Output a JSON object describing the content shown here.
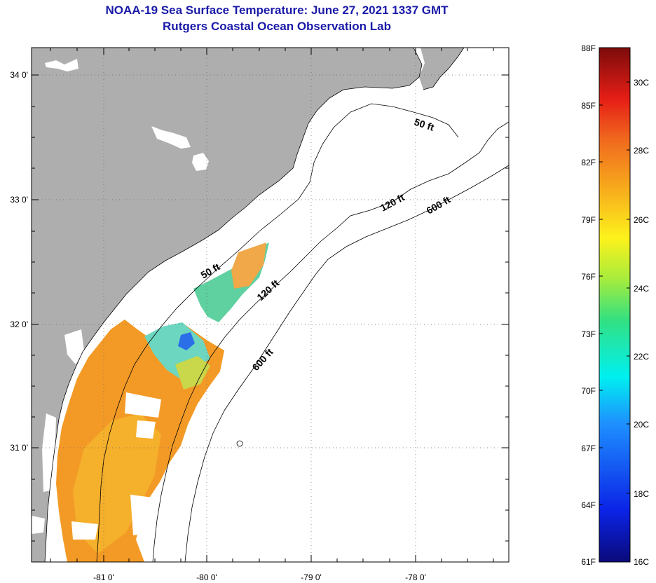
{
  "header": {
    "title": "NOAA-19 Sea Surface Temperature:  June 27, 2021 1337 GMT",
    "subtitle": "Rutgers Coastal Ocean Observation Lab"
  },
  "axes": {
    "longitude_labels": [
      "-81 0'",
      "-80 0'",
      "-79 0'",
      "-78 0'"
    ],
    "latitude_labels": [
      "34 0'",
      "33 0'",
      "32 0'",
      "31 0'"
    ]
  },
  "contours": [
    {
      "id": "c50a",
      "label": "50 ft"
    },
    {
      "id": "c120a",
      "label": "120 ft"
    },
    {
      "id": "c600a",
      "label": "600 ft"
    },
    {
      "id": "c50b",
      "label": "50 ft"
    },
    {
      "id": "c120b",
      "label": "120 ft"
    },
    {
      "id": "c600b",
      "label": "600 ft"
    }
  ],
  "colorbar": {
    "fahrenheit": [
      "88F",
      "85F",
      "82F",
      "79F",
      "76F",
      "73F",
      "70F",
      "67F",
      "64F",
      "61F"
    ],
    "celsius": [
      "30C",
      "28C",
      "26C",
      "24C",
      "22C",
      "20C",
      "18C",
      "16C"
    ]
  },
  "colors": {
    "title": "#1a1aa8",
    "land": "#aeaeae",
    "ocean": "#ffffff",
    "sst_warm": "#f39a26",
    "sst_cool": "#5fd0a0"
  }
}
